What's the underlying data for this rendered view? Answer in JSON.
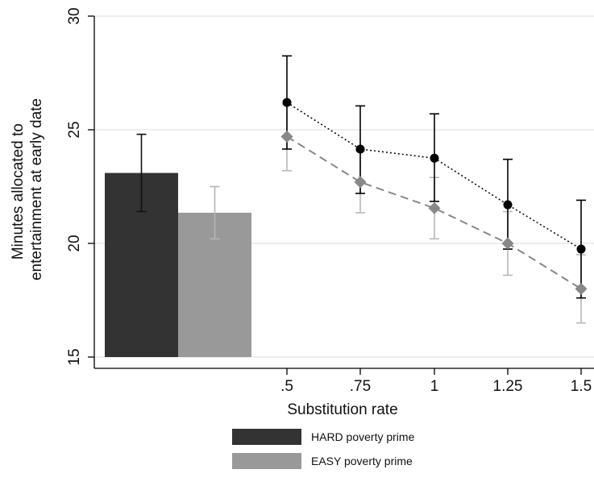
{
  "chart_data": {
    "type": "bar",
    "xlabel": "Substitution rate",
    "ylabel_lines": [
      "Minutes allocated to",
      "entertainment at early date"
    ],
    "ylim": [
      15,
      30
    ],
    "yticks": [
      15,
      20,
      25,
      30
    ],
    "grid": true,
    "legend_position": "bottom",
    "bars": [
      {
        "series": "HARD poverty prime",
        "value": 23.1,
        "ci": [
          21.4,
          24.8
        ],
        "color": "#333333"
      },
      {
        "series": "EASY poverty prime",
        "value": 21.35,
        "ci": [
          20.2,
          22.5
        ],
        "color": "#999999"
      }
    ],
    "x": [
      ".5",
      ".75",
      "1",
      "1.25",
      "1.5"
    ],
    "series": [
      {
        "name": "HARD poverty prime",
        "marker": "circle",
        "line_style": "dotted",
        "color": "#000000",
        "values": [
          26.2,
          24.15,
          23.75,
          21.7,
          19.75
        ],
        "ci_low": [
          24.15,
          22.2,
          21.85,
          19.75,
          17.6
        ],
        "ci_high": [
          28.25,
          26.05,
          25.7,
          23.7,
          21.9
        ]
      },
      {
        "name": "EASY poverty prime",
        "marker": "diamond",
        "line_style": "dashed",
        "color": "#888888",
        "values": [
          24.7,
          22.7,
          21.55,
          20.0,
          18.0
        ],
        "ci_low": [
          23.2,
          21.35,
          20.2,
          18.6,
          16.5
        ],
        "ci_high": [
          26.1,
          24.05,
          22.9,
          21.4,
          19.5
        ]
      }
    ],
    "legend": [
      {
        "label": "HARD poverty prime",
        "color": "#333333"
      },
      {
        "label": "EASY poverty prime",
        "color": "#999999"
      }
    ]
  }
}
